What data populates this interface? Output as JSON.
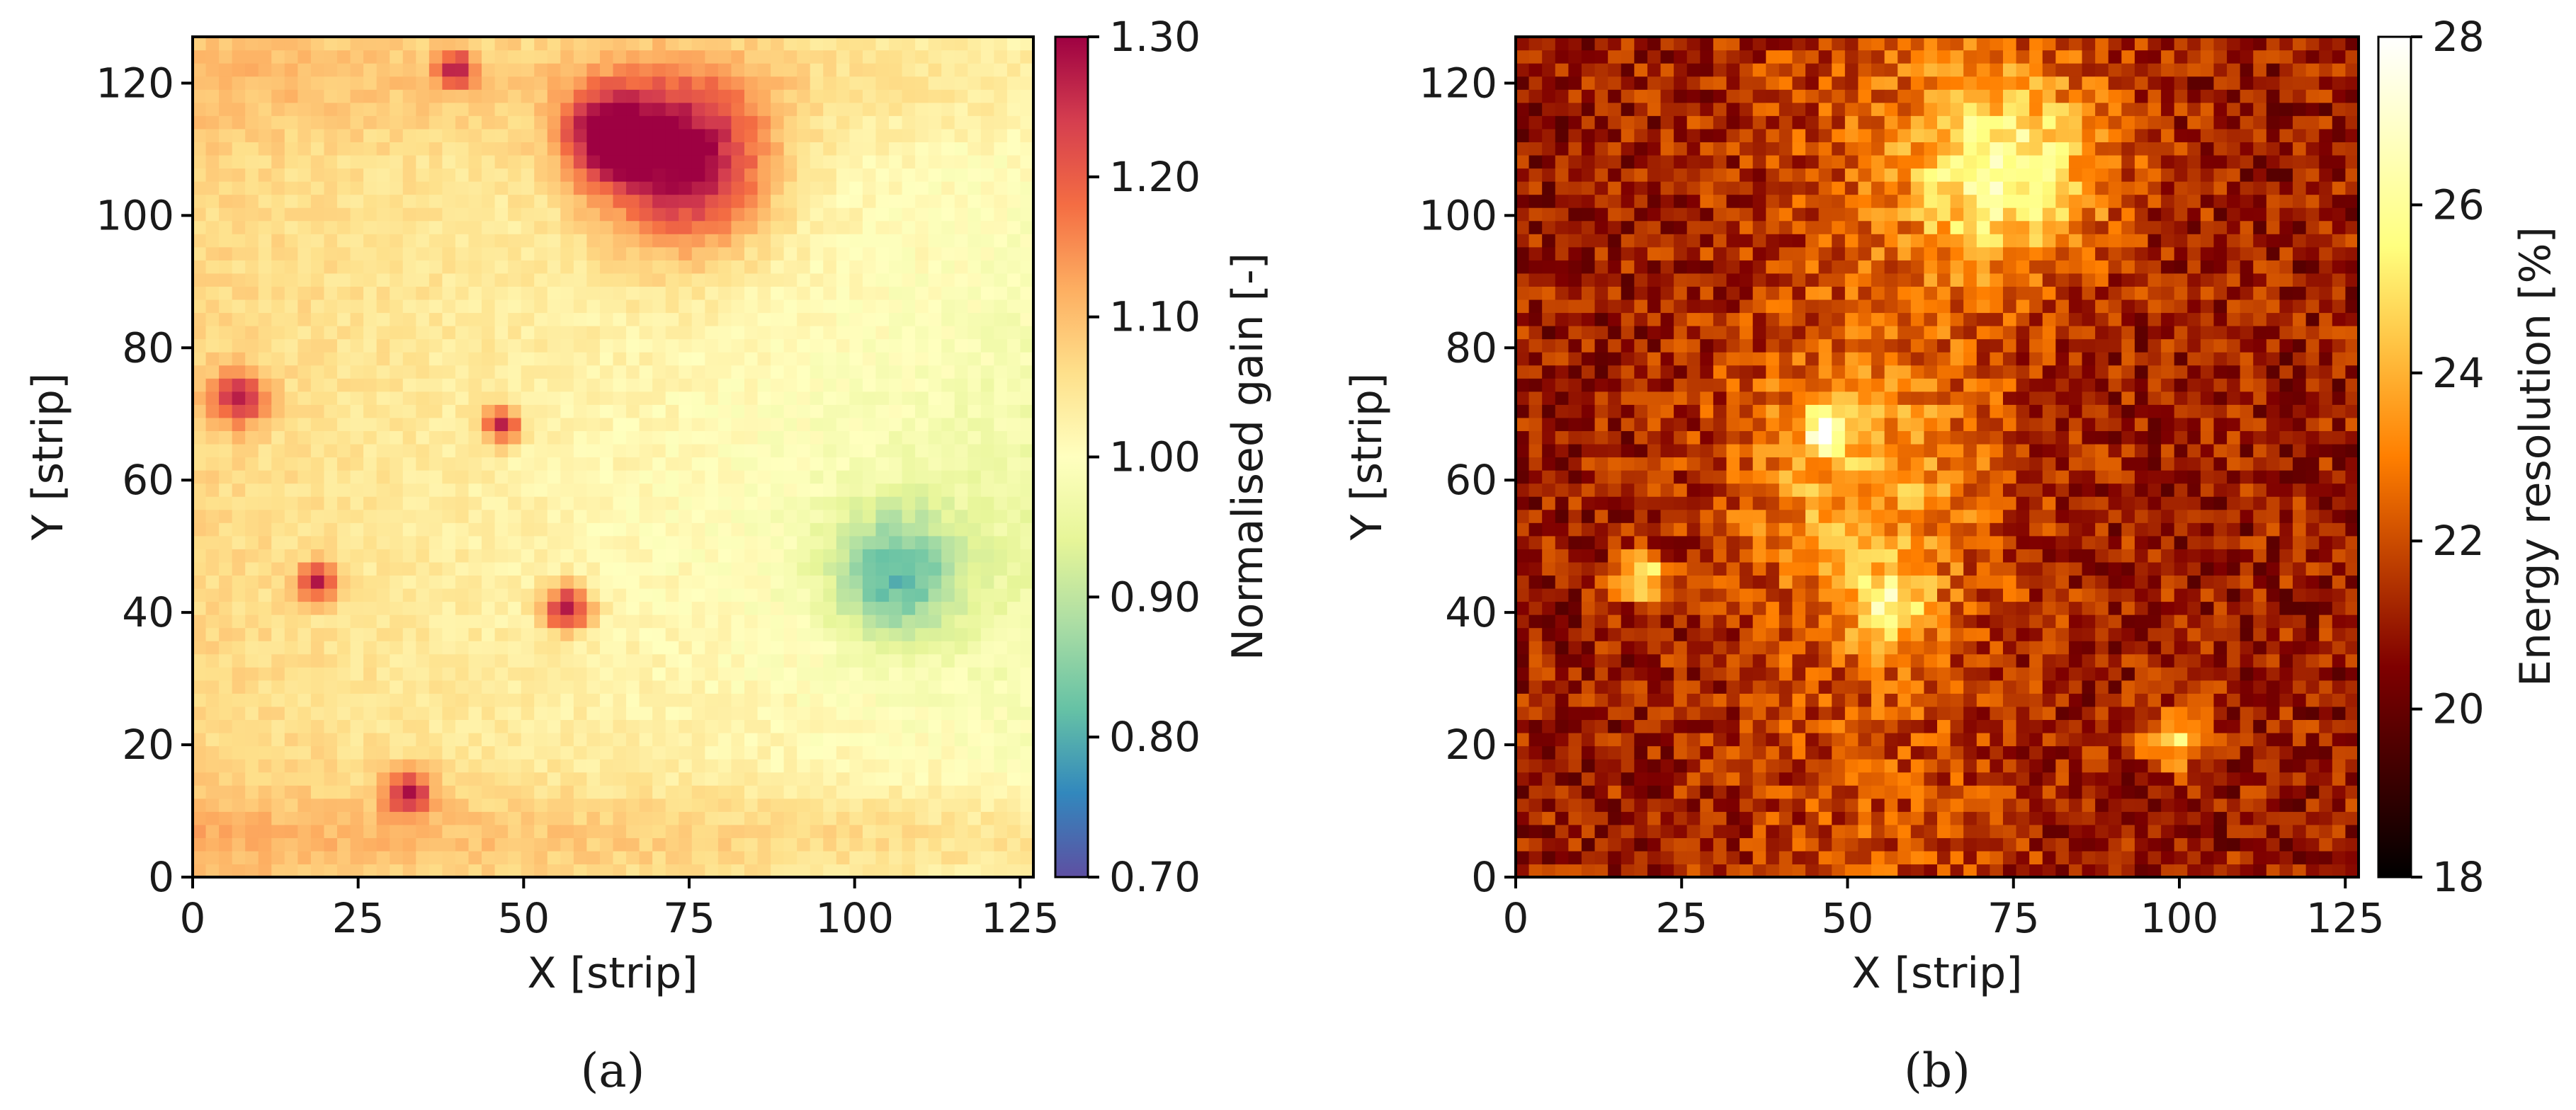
{
  "chart_data": [
    {
      "type": "heatmap",
      "panel_label": "(a)",
      "xlabel": "X [strip]",
      "ylabel": "Y [strip]",
      "xlim": [
        0,
        127
      ],
      "ylim": [
        0,
        127
      ],
      "xticks": [
        0,
        25,
        50,
        75,
        100,
        125
      ],
      "yticks": [
        0,
        20,
        40,
        60,
        80,
        100,
        120
      ],
      "grid": false,
      "colorbar": {
        "label": "Normalised gain [-]",
        "colormap": "Spectral_r",
        "range": [
          0.7,
          1.3
        ],
        "ticks": [
          "0.70",
          "0.80",
          "0.90",
          "1.00",
          "1.10",
          "1.20",
          "1.30"
        ]
      },
      "features": [
        {
          "description": "high-gain hot spot",
          "x": 75,
          "y": 109,
          "radius": 9,
          "value": 1.28
        },
        {
          "description": "high-gain hot spot",
          "x": 63,
          "y": 113,
          "radius": 5,
          "value": 1.22
        },
        {
          "description": "low-gain region",
          "x": 107,
          "y": 46,
          "radius": 7,
          "value": 0.83
        },
        {
          "description": "high-gain spot",
          "x": 57,
          "y": 41,
          "radius": 2.5,
          "value": 1.25
        },
        {
          "description": "high-gain spot",
          "x": 19,
          "y": 45,
          "radius": 2,
          "value": 1.22
        },
        {
          "description": "high-gain spot",
          "x": 7,
          "y": 73,
          "radius": 3,
          "value": 1.2
        },
        {
          "description": "high-gain spot",
          "x": 47,
          "y": 69,
          "radius": 2,
          "value": 1.22
        },
        {
          "description": "high-gain spot",
          "x": 33,
          "y": 13,
          "radius": 2.5,
          "value": 1.2
        },
        {
          "description": "high-gain spot",
          "x": 40,
          "y": 123,
          "radius": 2,
          "value": 1.2
        }
      ]
    },
    {
      "type": "heatmap",
      "panel_label": "(b)",
      "xlabel": "X [strip]",
      "ylabel": "Y [strip]",
      "xlim": [
        0,
        127
      ],
      "ylim": [
        0,
        127
      ],
      "xticks": [
        0,
        25,
        50,
        75,
        100,
        125
      ],
      "yticks": [
        0,
        20,
        40,
        60,
        80,
        100,
        120
      ],
      "grid": false,
      "colorbar": {
        "label": "Energy resolution [%]",
        "colormap": "afmhot",
        "range": [
          18,
          28
        ],
        "ticks": [
          "18",
          "20",
          "22",
          "24",
          "26",
          "28"
        ]
      },
      "features": [
        {
          "description": "elevated resolution region",
          "x": 75,
          "y": 108,
          "radius": 11,
          "value": 25.5
        },
        {
          "description": "elevated resolution region",
          "x": 57,
          "y": 41,
          "radius": 4,
          "value": 24.5
        },
        {
          "description": "elevated resolution region",
          "x": 47,
          "y": 68,
          "radius": 2,
          "value": 27
        },
        {
          "description": "elevated resolution band",
          "x": 52,
          "y": 60,
          "radius": 14,
          "value": 23
        },
        {
          "description": "elevated resolution region",
          "x": 100,
          "y": 21,
          "radius": 3,
          "value": 25
        },
        {
          "description": "elevated resolution region",
          "x": 19,
          "y": 46,
          "radius": 2.5,
          "value": 26
        }
      ]
    }
  ]
}
